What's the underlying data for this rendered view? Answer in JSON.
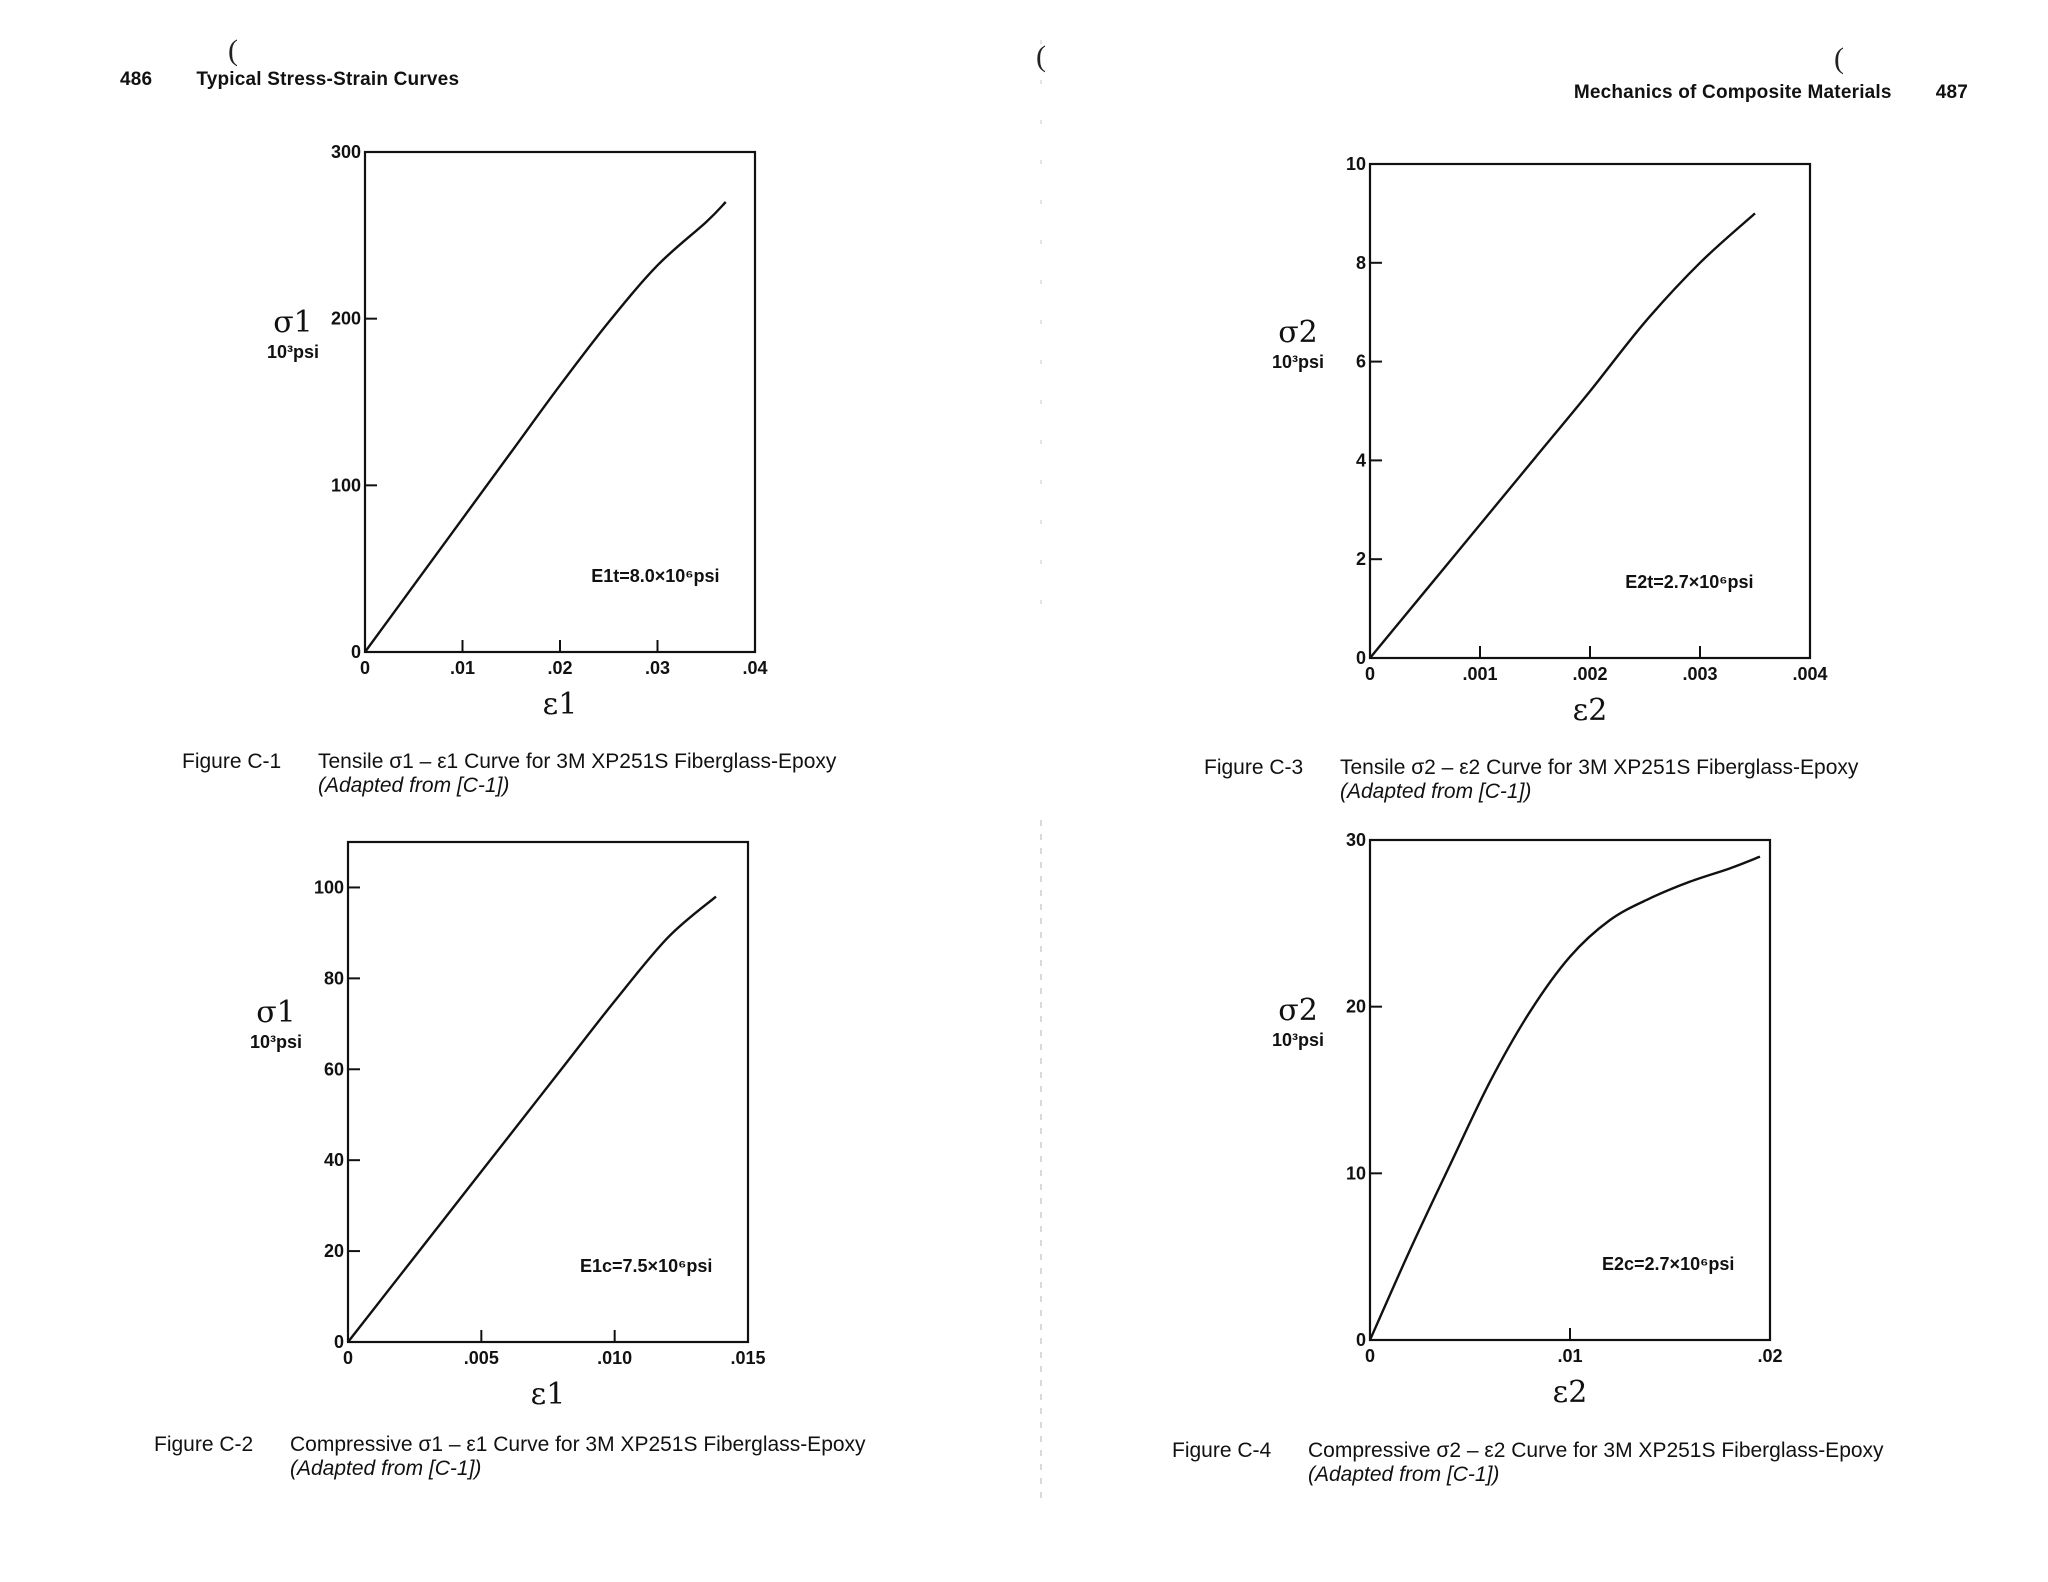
{
  "pages": {
    "left": {
      "page_number": "486",
      "running_head": "Typical Stress-Strain Curves",
      "paren_mark": "("
    },
    "right": {
      "page_number": "487",
      "running_head": "Mechanics of Composite Materials",
      "paren_mark": "("
    }
  },
  "figures": [
    {
      "number": "Figure C-1",
      "caption": "Tensile σ1 – ε1 Curve for 3M XP251S Fiberglass-Epoxy",
      "source": "(Adapted from [C-1])"
    },
    {
      "number": "Figure C-2",
      "caption": "Compressive σ1 – ε1 Curve for 3M XP251S Fiberglass-Epoxy",
      "source": "(Adapted from [C-1])"
    },
    {
      "number": "Figure C-3",
      "caption": "Tensile σ2 – ε2 Curve for 3M XP251S Fiberglass-Epoxy",
      "source": "(Adapted from [C-1])"
    },
    {
      "number": "Figure C-4",
      "caption": "Compressive σ2 – ε2 Curve for 3M XP251S Fiberglass-Epoxy",
      "source": "(Adapted from [C-1])"
    }
  ],
  "chart_data": [
    {
      "id": "C-1",
      "type": "line",
      "xlabel": "ε1",
      "ylabel": "σ1",
      "ylabel_unit": "10³psi",
      "xlim": [
        0,
        0.04
      ],
      "ylim": [
        0,
        300
      ],
      "xticks": [
        0,
        0.01,
        0.02,
        0.03,
        0.04
      ],
      "xtick_labels": [
        "0",
        ".01",
        ".02",
        ".03",
        ".04"
      ],
      "yticks": [
        0,
        100,
        200,
        300
      ],
      "ytick_labels": [
        "0",
        "100",
        "200",
        "300"
      ],
      "grid": false,
      "annotation": "E1t=8.0×10⁶psi",
      "series": [
        {
          "x": [
            0,
            0.005,
            0.01,
            0.015,
            0.02,
            0.025,
            0.03,
            0.035,
            0.037
          ],
          "y": [
            0,
            40,
            80,
            120,
            160,
            198,
            232,
            258,
            270
          ]
        }
      ]
    },
    {
      "id": "C-2",
      "type": "line",
      "xlabel": "ε1",
      "ylabel": "σ1",
      "ylabel_unit": "10³psi",
      "xlim": [
        0,
        0.015
      ],
      "ylim": [
        0,
        110
      ],
      "xticks": [
        0,
        0.005,
        0.01,
        0.015
      ],
      "xtick_labels": [
        "0",
        ".005",
        ".010",
        ".015"
      ],
      "yticks": [
        0,
        20,
        40,
        60,
        80,
        100
      ],
      "ytick_labels": [
        "0",
        "20",
        "40",
        "60",
        "80",
        "100"
      ],
      "grid": false,
      "annotation": "E1c=7.5×10⁶psi",
      "series": [
        {
          "x": [
            0,
            0.002,
            0.004,
            0.006,
            0.008,
            0.01,
            0.012,
            0.0138
          ],
          "y": [
            0,
            15,
            30,
            45,
            60,
            75,
            89,
            98
          ]
        }
      ]
    },
    {
      "id": "C-3",
      "type": "line",
      "xlabel": "ε2",
      "ylabel": "σ2",
      "ylabel_unit": "10³psi",
      "xlim": [
        0,
        0.004
      ],
      "ylim": [
        0,
        10
      ],
      "xticks": [
        0,
        0.001,
        0.002,
        0.003,
        0.004
      ],
      "xtick_labels": [
        "0",
        ".001",
        ".002",
        ".003",
        ".004"
      ],
      "yticks": [
        0,
        2,
        4,
        6,
        8,
        10
      ],
      "ytick_labels": [
        "0",
        "2",
        "4",
        "6",
        "8",
        "10"
      ],
      "grid": false,
      "annotation": "E2t=2.7×10⁶psi",
      "series": [
        {
          "x": [
            0,
            0.0005,
            0.001,
            0.0015,
            0.002,
            0.0025,
            0.003,
            0.0035
          ],
          "y": [
            0,
            1.35,
            2.7,
            4.05,
            5.4,
            6.8,
            8.0,
            9.0
          ]
        }
      ]
    },
    {
      "id": "C-4",
      "type": "line",
      "xlabel": "ε2",
      "ylabel": "σ2",
      "ylabel_unit": "10³psi",
      "xlim": [
        0,
        0.02
      ],
      "ylim": [
        0,
        30
      ],
      "xticks": [
        0,
        0.01,
        0.02
      ],
      "xtick_labels": [
        "0",
        ".01",
        ".02"
      ],
      "yticks": [
        0,
        10,
        20,
        30
      ],
      "ytick_labels": [
        "0",
        "10",
        "20",
        "30"
      ],
      "grid": false,
      "annotation": "E2c=2.7×10⁶psi",
      "series": [
        {
          "x": [
            0,
            0.002,
            0.004,
            0.006,
            0.008,
            0.01,
            0.012,
            0.014,
            0.016,
            0.018,
            0.0195
          ],
          "y": [
            0,
            5.4,
            10.5,
            15.5,
            19.7,
            23.0,
            25.2,
            26.5,
            27.5,
            28.3,
            29.0
          ]
        }
      ]
    }
  ]
}
